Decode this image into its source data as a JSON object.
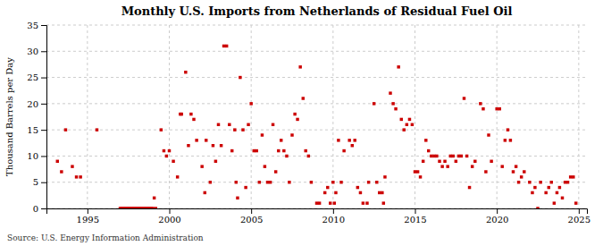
{
  "chart_data": {
    "type": "scatter",
    "title": "Monthly U.S. Imports from Netherlands of Residual Fuel Oil",
    "ylabel": "Thousand Barrels per Day",
    "annotations": [
      "Source: U.S. Energy Information Administration"
    ],
    "color": "#cc0000",
    "marker": "square",
    "grid": true,
    "xlim": [
      1992.5,
      2025.5
    ],
    "ylim": [
      0,
      35
    ],
    "xticks": [
      1995,
      2000,
      2005,
      2010,
      2015,
      2020,
      2025
    ],
    "yticks": [
      0,
      5,
      10,
      15,
      20,
      25,
      30,
      35
    ],
    "x": [
      1993.17,
      1993.42,
      1993.67,
      1994.08,
      1994.33,
      1994.58,
      1995.58,
      1997.0,
      1997.08,
      1997.17,
      1997.25,
      1997.33,
      1997.42,
      1997.5,
      1997.58,
      1997.67,
      1997.75,
      1997.83,
      1997.92,
      1998.0,
      1998.08,
      1998.17,
      1998.25,
      1998.33,
      1998.42,
      1998.5,
      1998.58,
      1998.67,
      1998.75,
      1998.83,
      1998.92,
      1999.0,
      1999.08,
      1999.17,
      1999.5,
      1999.67,
      1999.83,
      2000.0,
      2000.25,
      2000.5,
      2000.67,
      2000.75,
      2001.0,
      2001.17,
      2001.33,
      2001.5,
      2001.67,
      2002.0,
      2002.17,
      2002.25,
      2002.5,
      2002.67,
      2002.83,
      2003.0,
      2003.17,
      2003.33,
      2003.5,
      2003.67,
      2003.83,
      2004.0,
      2004.08,
      2004.17,
      2004.33,
      2004.5,
      2004.67,
      2004.83,
      2005.0,
      2005.17,
      2005.33,
      2005.5,
      2005.67,
      2005.83,
      2006.0,
      2006.17,
      2006.33,
      2006.5,
      2006.67,
      2006.83,
      2007.0,
      2007.17,
      2007.33,
      2007.5,
      2007.67,
      2007.83,
      2008.0,
      2008.17,
      2008.33,
      2008.5,
      2008.67,
      2009.0,
      2009.17,
      2009.5,
      2009.67,
      2009.83,
      2010.0,
      2010.08,
      2010.17,
      2010.33,
      2010.5,
      2010.67,
      2011.0,
      2011.17,
      2011.33,
      2011.5,
      2011.67,
      2011.83,
      2012.08,
      2012.17,
      2012.5,
      2012.67,
      2012.83,
      2013.0,
      2013.08,
      2013.17,
      2013.5,
      2013.67,
      2013.83,
      2014.0,
      2014.17,
      2014.33,
      2014.5,
      2014.67,
      2014.83,
      2015.0,
      2015.17,
      2015.33,
      2015.5,
      2015.67,
      2015.83,
      2016.0,
      2016.17,
      2016.33,
      2016.5,
      2016.67,
      2016.83,
      2017.0,
      2017.17,
      2017.33,
      2017.5,
      2017.67,
      2017.83,
      2018.0,
      2018.17,
      2018.33,
      2018.5,
      2018.67,
      2019.0,
      2019.17,
      2019.33,
      2019.5,
      2019.67,
      2020.0,
      2020.17,
      2020.33,
      2020.5,
      2020.67,
      2020.83,
      2021.0,
      2021.17,
      2021.33,
      2021.5,
      2021.67,
      2022.0,
      2022.17,
      2022.33,
      2022.5,
      2022.67,
      2023.0,
      2023.17,
      2023.33,
      2023.5,
      2023.67,
      2023.83,
      2024.0,
      2024.17,
      2024.33,
      2024.5,
      2024.67,
      2024.83
    ],
    "values": [
      9,
      7,
      15,
      8,
      6,
      6,
      15,
      0,
      0,
      0,
      0,
      0,
      0,
      0,
      0,
      0,
      0,
      0,
      0,
      0,
      0,
      0,
      0,
      0,
      0,
      0,
      0,
      0,
      0,
      0,
      0,
      0,
      2,
      0,
      15,
      11,
      10,
      11,
      9,
      6,
      18,
      18,
      26,
      12,
      18,
      17,
      13,
      8,
      3,
      13,
      5,
      12,
      9,
      16,
      12,
      31,
      31,
      16,
      11,
      15,
      5,
      2,
      25,
      15,
      4,
      16,
      20,
      11,
      11,
      5,
      14,
      8,
      5,
      5,
      16,
      7,
      11,
      13,
      11,
      10,
      5,
      14,
      18,
      17,
      27,
      21,
      11,
      10,
      5,
      1,
      1,
      3,
      4,
      1,
      5,
      1,
      3,
      13,
      5,
      11,
      13,
      12,
      13,
      4,
      3,
      1,
      1,
      5,
      20,
      5,
      3,
      3,
      1,
      6,
      22,
      20,
      19,
      27,
      17,
      15,
      16,
      17,
      16,
      7,
      7,
      6,
      9,
      13,
      11,
      10,
      10,
      10,
      9,
      8,
      9,
      8,
      10,
      10,
      9,
      10,
      10,
      21,
      10,
      4,
      8,
      9,
      20,
      19,
      7,
      14,
      9,
      19,
      19,
      8,
      13,
      15,
      13,
      7,
      8,
      5,
      6,
      7,
      5,
      3,
      4,
      0,
      5,
      3,
      4,
      5,
      1,
      3,
      4,
      2,
      5,
      5,
      6,
      6,
      1
    ]
  }
}
